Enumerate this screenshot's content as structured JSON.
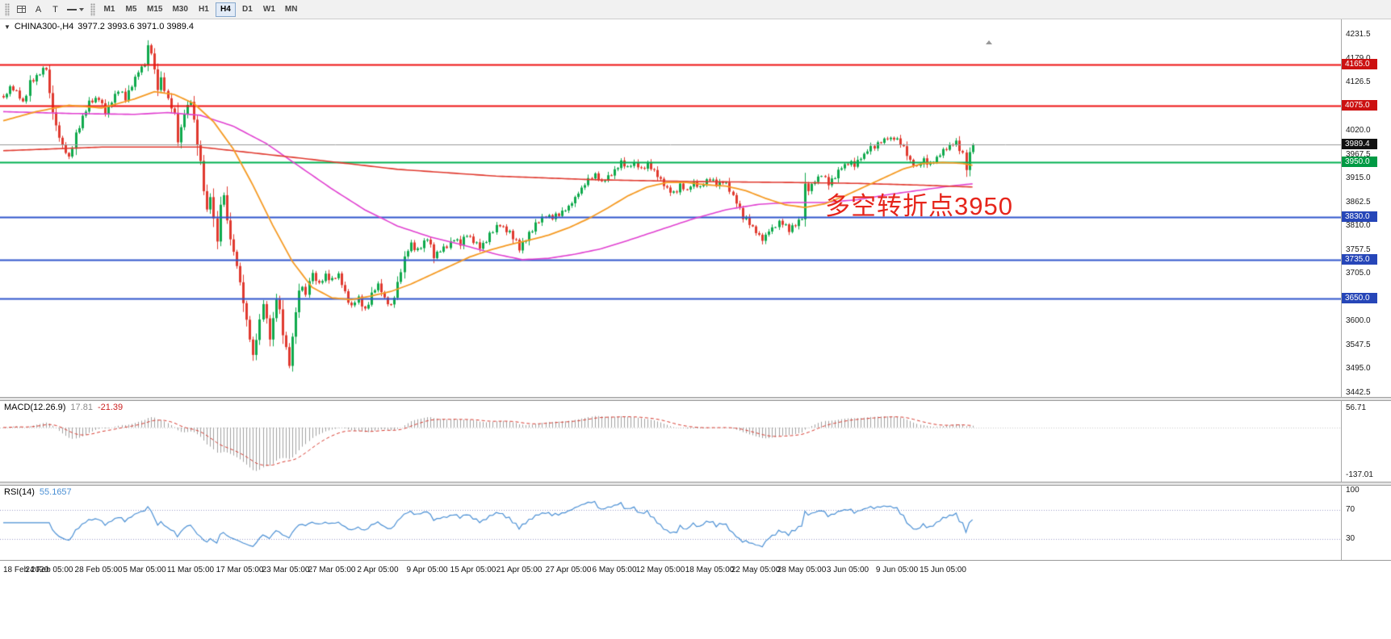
{
  "toolbar": {
    "icon_buttons": [
      {
        "name": "chart-window-icon",
        "type": "grid"
      },
      {
        "name": "cursor-mode-icon",
        "glyph": "A"
      },
      {
        "name": "text-label-icon",
        "glyph": "T"
      },
      {
        "name": "line-style-icon",
        "type": "line",
        "dropdown": true
      }
    ],
    "timeframes": [
      {
        "label": "M1"
      },
      {
        "label": "M5"
      },
      {
        "label": "M15"
      },
      {
        "label": "M30"
      },
      {
        "label": "H1"
      },
      {
        "label": "H4",
        "active": true
      },
      {
        "label": "D1"
      },
      {
        "label": "W1"
      },
      {
        "label": "MN"
      }
    ]
  },
  "chart_data": {
    "type": "candlestick",
    "symbol": "CHINA300-",
    "period": "H4",
    "header_symbol": "CHINA300-,H4",
    "header_ohlc": "3977.2 3993.6 3971.0 3989.4",
    "colors": {
      "up": "#0fa94c",
      "down": "#e03a2f",
      "ma_fast": "#f59a23",
      "ma_mid": "#e040d0",
      "ma_slow": "#e03a2f",
      "macd_hist": "#a0a0a0",
      "macd_signal": "#d63a2f",
      "rsi": "#4a8fd4"
    },
    "price_axis": {
      "min": 3442.5,
      "max": 4231.5,
      "ticks": [
        4231.5,
        4179.0,
        4126.5,
        4074.0,
        4020.0,
        3967.5,
        3915.0,
        3862.5,
        3810.0,
        3757.5,
        3705.0,
        3652.5,
        3600.0,
        3547.5,
        3495.0,
        3442.5
      ]
    },
    "h_lines": [
      {
        "price": 4165.0,
        "color": "#ee1111",
        "tag": "4165.0",
        "tag_bg": "#cc1111",
        "width": 2
      },
      {
        "price": 4075.0,
        "color": "#ee1111",
        "tag": "4075.0",
        "tag_bg": "#cc1111",
        "width": 2
      },
      {
        "price": 3950.0,
        "color": "#00b050",
        "tag": "3950.0",
        "tag_bg": "#009a44",
        "width": 2
      },
      {
        "price": 3830.0,
        "color": "#2f55cc",
        "tag": "3830.0",
        "tag_bg": "#2646b8",
        "width": 2
      },
      {
        "price": 3735.0,
        "color": "#2f55cc",
        "tag": "3735.0",
        "tag_bg": "#2646b8",
        "width": 2
      },
      {
        "price": 3650.0,
        "color": "#2f55cc",
        "tag": "3650.0",
        "tag_bg": "#2646b8",
        "width": 2
      }
    ],
    "current_price": {
      "value": 3989.4,
      "tag": "3989.4",
      "tag_bg": "#111111",
      "line_color": "#9a9a9a"
    },
    "annotation": {
      "text": "多空转折点3950",
      "color": "#e6251b"
    },
    "candle_count": 296,
    "close_path": [
      [
        0,
        4090
      ],
      [
        2,
        4115
      ],
      [
        4,
        4105
      ],
      [
        6,
        4080
      ],
      [
        8,
        4125
      ],
      [
        10,
        4140
      ],
      [
        12,
        4155
      ],
      [
        13,
        4160
      ],
      [
        14,
        4100
      ],
      [
        16,
        4030
      ],
      [
        18,
        3985
      ],
      [
        20,
        3960
      ],
      [
        22,
        4010
      ],
      [
        24,
        4050
      ],
      [
        26,
        4085
      ],
      [
        29,
        4095
      ],
      [
        31,
        4060
      ],
      [
        33,
        4085
      ],
      [
        35,
        4110
      ],
      [
        37,
        4090
      ],
      [
        39,
        4120
      ],
      [
        41,
        4150
      ],
      [
        43,
        4168
      ],
      [
        44,
        4205
      ],
      [
        45,
        4195
      ],
      [
        46,
        4150
      ],
      [
        47,
        4115
      ],
      [
        48,
        4135
      ],
      [
        50,
        4090
      ],
      [
        52,
        4055
      ],
      [
        53,
        3998
      ],
      [
        54,
        4025
      ],
      [
        55,
        4060
      ],
      [
        57,
        4085
      ],
      [
        58,
        4040
      ],
      [
        59,
        3990
      ],
      [
        60,
        3950
      ],
      [
        61,
        3892
      ],
      [
        62,
        3845
      ],
      [
        63,
        3875
      ],
      [
        64,
        3820
      ],
      [
        65,
        3782
      ],
      [
        66,
        3850
      ],
      [
        67,
        3880
      ],
      [
        68,
        3822
      ],
      [
        69,
        3782
      ],
      [
        70,
        3752
      ],
      [
        71,
        3722
      ],
      [
        72,
        3682
      ],
      [
        73,
        3642
      ],
      [
        74,
        3600
      ],
      [
        75,
        3562
      ],
      [
        76,
        3522
      ],
      [
        77,
        3562
      ],
      [
        78,
        3602
      ],
      [
        79,
        3642
      ],
      [
        80,
        3602
      ],
      [
        81,
        3562
      ],
      [
        82,
        3602
      ],
      [
        83,
        3650
      ],
      [
        84,
        3622
      ],
      [
        85,
        3572
      ],
      [
        86,
        3540
      ],
      [
        87,
        3502
      ],
      [
        88,
        3562
      ],
      [
        89,
        3622
      ],
      [
        90,
        3662
      ],
      [
        91,
        3682
      ],
      [
        92,
        3652
      ],
      [
        93,
        3692
      ],
      [
        94,
        3702
      ],
      [
        96,
        3682
      ],
      [
        98,
        3702
      ],
      [
        100,
        3692
      ],
      [
        102,
        3702
      ],
      [
        104,
        3662
      ],
      [
        106,
        3632
      ],
      [
        108,
        3652
      ],
      [
        110,
        3622
      ],
      [
        112,
        3662
      ],
      [
        114,
        3682
      ],
      [
        116,
        3652
      ],
      [
        118,
        3632
      ],
      [
        120,
        3682
      ],
      [
        122,
        3742
      ],
      [
        124,
        3772
      ],
      [
        126,
        3756
      ],
      [
        129,
        3782
      ],
      [
        131,
        3746
      ],
      [
        133,
        3756
      ],
      [
        135,
        3766
      ],
      [
        137,
        3782
      ],
      [
        139,
        3772
      ],
      [
        141,
        3792
      ],
      [
        143,
        3776
      ],
      [
        145,
        3762
      ],
      [
        147,
        3782
      ],
      [
        149,
        3802
      ],
      [
        151,
        3812
      ],
      [
        153,
        3802
      ],
      [
        155,
        3786
      ],
      [
        157,
        3762
      ],
      [
        159,
        3782
      ],
      [
        161,
        3802
      ],
      [
        163,
        3822
      ],
      [
        165,
        3832
      ],
      [
        167,
        3826
      ],
      [
        169,
        3836
      ],
      [
        172,
        3852
      ],
      [
        174,
        3872
      ],
      [
        176,
        3892
      ],
      [
        178,
        3912
      ],
      [
        180,
        3922
      ],
      [
        182,
        3906
      ],
      [
        184,
        3916
      ],
      [
        186,
        3932
      ],
      [
        188,
        3950
      ],
      [
        190,
        3940
      ],
      [
        192,
        3950
      ],
      [
        194,
        3936
      ],
      [
        196,
        3946
      ],
      [
        198,
        3930
      ],
      [
        200,
        3910
      ],
      [
        202,
        3890
      ],
      [
        204,
        3880
      ],
      [
        206,
        3900
      ],
      [
        208,
        3890
      ],
      [
        210,
        3906
      ],
      [
        212,
        3896
      ],
      [
        215,
        3916
      ],
      [
        217,
        3900
      ],
      [
        219,
        3910
      ],
      [
        221,
        3890
      ],
      [
        223,
        3860
      ],
      [
        225,
        3830
      ],
      [
        227,
        3816
      ],
      [
        229,
        3796
      ],
      [
        231,
        3780
      ],
      [
        233,
        3800
      ],
      [
        235,
        3810
      ],
      [
        237,
        3820
      ],
      [
        239,
        3800
      ],
      [
        241,
        3816
      ],
      [
        243,
        3830
      ],
      [
        244,
        3900
      ],
      [
        245,
        3890
      ],
      [
        247,
        3910
      ],
      [
        249,
        3925
      ],
      [
        251,
        3905
      ],
      [
        253,
        3920
      ],
      [
        255,
        3940
      ],
      [
        257,
        3950
      ],
      [
        259,
        3945
      ],
      [
        261,
        3960
      ],
      [
        263,
        3975
      ],
      [
        265,
        3985
      ],
      [
        267,
        3995
      ],
      [
        269,
        4005
      ],
      [
        272,
        4000
      ],
      [
        274,
        3985
      ],
      [
        276,
        3950
      ],
      [
        278,
        3940
      ],
      [
        280,
        3955
      ],
      [
        282,
        3945
      ],
      [
        284,
        3960
      ],
      [
        286,
        3975
      ],
      [
        288,
        3985
      ],
      [
        290,
        3995
      ],
      [
        292,
        3968
      ],
      [
        293,
        3936
      ],
      [
        294,
        3970
      ],
      [
        295,
        3989.4
      ]
    ],
    "ma_fast_path": [
      [
        0,
        4042
      ],
      [
        10,
        4062
      ],
      [
        20,
        4076
      ],
      [
        30,
        4070
      ],
      [
        40,
        4090
      ],
      [
        46,
        4106
      ],
      [
        52,
        4100
      ],
      [
        58,
        4080
      ],
      [
        64,
        4040
      ],
      [
        70,
        3980
      ],
      [
        76,
        3900
      ],
      [
        82,
        3812
      ],
      [
        88,
        3732
      ],
      [
        94,
        3675
      ],
      [
        100,
        3652
      ],
      [
        106,
        3648
      ],
      [
        112,
        3656
      ],
      [
        118,
        3666
      ],
      [
        124,
        3682
      ],
      [
        130,
        3702
      ],
      [
        136,
        3722
      ],
      [
        142,
        3742
      ],
      [
        148,
        3757
      ],
      [
        154,
        3769
      ],
      [
        160,
        3779
      ],
      [
        166,
        3790
      ],
      [
        172,
        3806
      ],
      [
        178,
        3826
      ],
      [
        184,
        3850
      ],
      [
        190,
        3876
      ],
      [
        196,
        3896
      ],
      [
        202,
        3906
      ],
      [
        208,
        3906
      ],
      [
        214,
        3901
      ],
      [
        220,
        3898
      ],
      [
        226,
        3888
      ],
      [
        232,
        3871
      ],
      [
        238,
        3857
      ],
      [
        244,
        3851
      ],
      [
        250,
        3859
      ],
      [
        256,
        3876
      ],
      [
        262,
        3896
      ],
      [
        268,
        3916
      ],
      [
        274,
        3936
      ],
      [
        280,
        3948
      ],
      [
        286,
        3950
      ],
      [
        292,
        3948
      ],
      [
        295,
        3944
      ]
    ],
    "ma_mid_path": [
      [
        0,
        4062
      ],
      [
        20,
        4058
      ],
      [
        40,
        4056
      ],
      [
        50,
        4060
      ],
      [
        60,
        4054
      ],
      [
        70,
        4030
      ],
      [
        80,
        3992
      ],
      [
        90,
        3942
      ],
      [
        100,
        3892
      ],
      [
        110,
        3846
      ],
      [
        120,
        3810
      ],
      [
        130,
        3786
      ],
      [
        140,
        3768
      ],
      [
        150,
        3748
      ],
      [
        158,
        3736
      ],
      [
        166,
        3739
      ],
      [
        174,
        3748
      ],
      [
        182,
        3760
      ],
      [
        190,
        3778
      ],
      [
        200,
        3802
      ],
      [
        210,
        3826
      ],
      [
        220,
        3846
      ],
      [
        230,
        3858
      ],
      [
        240,
        3862
      ],
      [
        250,
        3862
      ],
      [
        260,
        3868
      ],
      [
        270,
        3880
      ],
      [
        280,
        3890
      ],
      [
        288,
        3898
      ],
      [
        295,
        3903
      ]
    ],
    "ma_slow_path": [
      [
        0,
        3976
      ],
      [
        30,
        3984
      ],
      [
        60,
        3984
      ],
      [
        90,
        3960
      ],
      [
        120,
        3935
      ],
      [
        150,
        3920
      ],
      [
        180,
        3912
      ],
      [
        210,
        3908
      ],
      [
        240,
        3906
      ],
      [
        260,
        3904
      ],
      [
        280,
        3900
      ],
      [
        295,
        3896
      ]
    ],
    "time_labels": [
      {
        "i": 0,
        "t": "18 Feb 2020"
      },
      {
        "i": 14,
        "t": "24 Feb 05:00"
      },
      {
        "i": 29,
        "t": "28 Feb 05:00"
      },
      {
        "i": 43,
        "t": "5 Mar 05:00"
      },
      {
        "i": 57,
        "t": "11 Mar 05:00"
      },
      {
        "i": 72,
        "t": "17 Mar 05:00"
      },
      {
        "i": 86,
        "t": "23 Mar 05:00"
      },
      {
        "i": 100,
        "t": "27 Mar 05:00"
      },
      {
        "i": 114,
        "t": "2 Apr 05:00"
      },
      {
        "i": 129,
        "t": "9 Apr 05:00"
      },
      {
        "i": 143,
        "t": "15 Apr 05:00"
      },
      {
        "i": 157,
        "t": "21 Apr 05:00"
      },
      {
        "i": 172,
        "t": "27 Apr 05:00"
      },
      {
        "i": 186,
        "t": "6 May 05:00"
      },
      {
        "i": 200,
        "t": "12 May 05:00"
      },
      {
        "i": 215,
        "t": "18 May 05:00"
      },
      {
        "i": 229,
        "t": "22 May 05:00"
      },
      {
        "i": 243,
        "t": "28 May 05:00"
      },
      {
        "i": 257,
        "t": "3 Jun 05:00"
      },
      {
        "i": 272,
        "t": "9 Jun 05:00"
      },
      {
        "i": 286,
        "t": "15 Jun 05:00"
      }
    ],
    "macd": {
      "label": "MACD(12.26.9)",
      "value": "17.81",
      "signal": "-21.39",
      "axis_top": "56.71",
      "axis_bottom": "-137.01"
    },
    "rsi": {
      "label": "RSI(14)",
      "value": "55.1657",
      "axis": [
        100,
        70,
        30
      ],
      "levels": [
        70,
        30
      ]
    }
  }
}
